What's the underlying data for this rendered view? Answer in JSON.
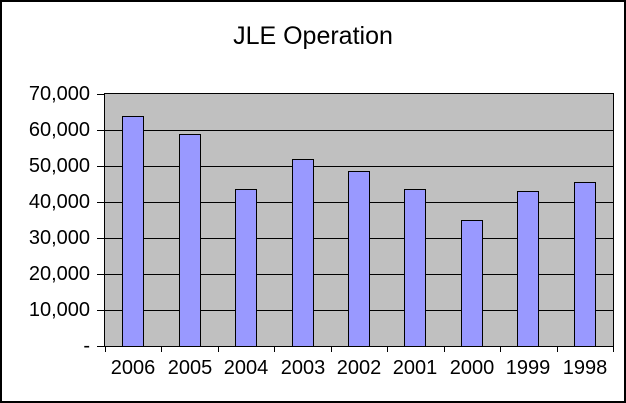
{
  "chart_data": {
    "type": "bar",
    "title": "JLE Operation",
    "categories": [
      "2006",
      "2005",
      "2004",
      "2003",
      "2002",
      "2001",
      "2000",
      "1999",
      "1998"
    ],
    "values": [
      64000,
      59000,
      43500,
      52000,
      48500,
      43500,
      35000,
      43000,
      45500
    ],
    "xlabel": "",
    "ylabel": "",
    "ylim": [
      0,
      70000
    ],
    "ytick_interval": 10000,
    "ytick_labels": [
      "70,000",
      "60,000",
      "50,000",
      "40,000",
      "30,000",
      "20,000",
      "10,000",
      "-"
    ],
    "grid": "horizontal",
    "legend": "none",
    "colors": {
      "bar_fill": "#9999FF",
      "bar_border": "#000000",
      "plot_background": "#C0C0C0",
      "chart_background": "#FFFFFF",
      "gridline": "#000000",
      "text": "#000000",
      "chart_border": "#000000"
    }
  }
}
